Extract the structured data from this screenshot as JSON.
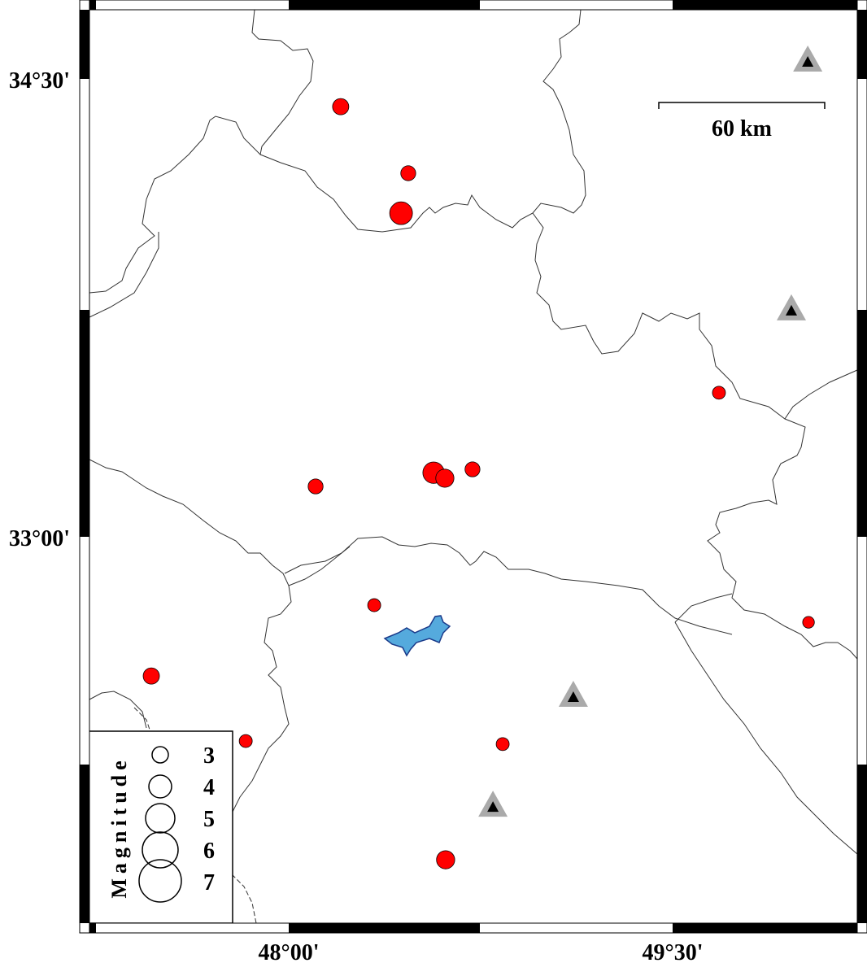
{
  "map": {
    "lon_range": [
      47.17,
      50.2
    ],
    "lat_range": [
      31.72,
      34.74
    ],
    "x_ticks": [
      {
        "value": 48.0,
        "label": "48°00'"
      },
      {
        "value": 49.5,
        "label": "49°30'"
      }
    ],
    "y_ticks": [
      {
        "value": 34.5,
        "label": "34°30'"
      },
      {
        "value": 33.0,
        "label": "33°00'"
      }
    ],
    "scale_bar_label": "60 km",
    "event_color": "#ff0000",
    "station_color": "#aaaaaa",
    "lake_color": "#55aadd"
  },
  "events": [
    {
      "lon": 48.203,
      "lat": 34.409,
      "mag": 3.0
    },
    {
      "lon": 48.467,
      "lat": 34.191,
      "mag": 2.8
    },
    {
      "lon": 48.439,
      "lat": 34.06,
      "mag": 4.0
    },
    {
      "lon": 49.681,
      "lat": 33.472,
      "mag": 2.5
    },
    {
      "lon": 48.566,
      "lat": 33.21,
      "mag": 3.8
    },
    {
      "lon": 48.61,
      "lat": 33.192,
      "mag": 3.3
    },
    {
      "lon": 48.718,
      "lat": 33.221,
      "mag": 2.8
    },
    {
      "lon": 48.105,
      "lat": 33.165,
      "mag": 2.8
    },
    {
      "lon": 48.334,
      "lat": 32.776,
      "mag": 2.5
    },
    {
      "lon": 50.031,
      "lat": 32.72,
      "mag": 2.3
    },
    {
      "lon": 47.463,
      "lat": 32.544,
      "mag": 3.0
    },
    {
      "lon": 47.832,
      "lat": 32.331,
      "mag": 2.5
    },
    {
      "lon": 48.836,
      "lat": 32.321,
      "mag": 2.5
    },
    {
      "lon": 48.613,
      "lat": 31.942,
      "mag": 3.3
    }
  ],
  "stations": [
    {
      "lon": 50.028,
      "lat": 34.556
    },
    {
      "lon": 49.964,
      "lat": 33.741
    },
    {
      "lon": 49.112,
      "lat": 32.475
    },
    {
      "lon": 48.798,
      "lat": 32.115
    }
  ],
  "legend": {
    "title": "Magnitude",
    "items": [
      {
        "mag": 3,
        "label": "3"
      },
      {
        "mag": 4,
        "label": "4"
      },
      {
        "mag": 5,
        "label": "5"
      },
      {
        "mag": 6,
        "label": "6"
      },
      {
        "mag": 7,
        "label": "7"
      }
    ]
  }
}
